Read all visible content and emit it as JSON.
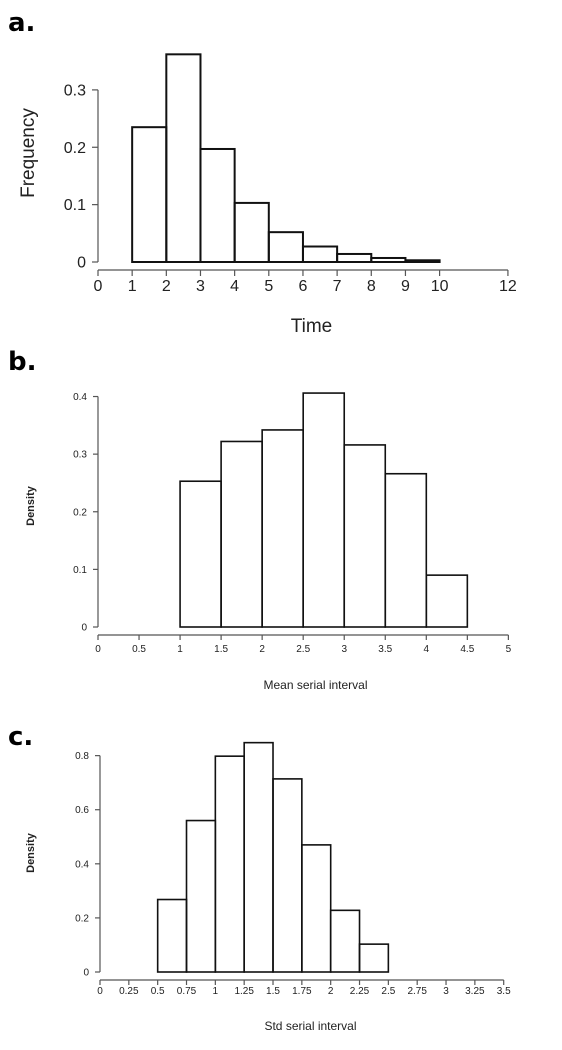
{
  "panels": [
    {
      "label": "a."
    },
    {
      "label": "b."
    },
    {
      "label": "c."
    }
  ],
  "chart_data": [
    {
      "type": "bar",
      "title": "",
      "xlabel": "Time",
      "ylabel": "Frequency",
      "xlim": [
        0,
        12.5
      ],
      "ylim": [
        0,
        0.38
      ],
      "xticks": [
        "0",
        "1",
        "2",
        "3",
        "4",
        "5",
        "6",
        "7",
        "8",
        "9",
        "10",
        "12"
      ],
      "yticks": [
        "0",
        "0.1",
        "0.2",
        "0.3"
      ],
      "bin_edges": [
        1,
        2,
        3,
        4,
        5,
        6,
        7,
        8,
        9,
        10
      ],
      "values": [
        0.235,
        0.362,
        0.197,
        0.103,
        0.052,
        0.027,
        0.014,
        0.007,
        0.003
      ],
      "grid": false
    },
    {
      "type": "bar",
      "title": "",
      "xlabel": "Mean serial interval",
      "ylabel": "Density",
      "xlim": [
        0,
        5.3
      ],
      "ylim": [
        0,
        0.42
      ],
      "xticks": [
        "0",
        "0.5",
        "1",
        "1.5",
        "2",
        "2.5",
        "3",
        "3.5",
        "4",
        "4.5",
        "5"
      ],
      "yticks": [
        "0",
        "0.1",
        "0.2",
        "0.3",
        "0.4"
      ],
      "bin_edges": [
        1,
        1.5,
        2,
        2.5,
        3,
        3.5,
        4,
        4.5
      ],
      "values": [
        0.253,
        0.322,
        0.342,
        0.406,
        0.316,
        0.266,
        0.09
      ],
      "grid": false
    },
    {
      "type": "bar",
      "title": "",
      "xlabel": "Std serial interval",
      "ylabel": "Density",
      "xlim": [
        0,
        3.65
      ],
      "ylim": [
        0,
        0.88
      ],
      "xticks": [
        "0",
        "0.25",
        "0.5",
        "0.75",
        "1",
        "1.25",
        "1.5",
        "1.75",
        "2",
        "2.25",
        "2.5",
        "2.75",
        "3",
        "3.25",
        "3.5"
      ],
      "yticks": [
        "0",
        "0.2",
        "0.4",
        "0.6",
        "0.8"
      ],
      "bin_edges": [
        0.5,
        0.75,
        1,
        1.25,
        1.5,
        1.75,
        2,
        2.25,
        2.5
      ],
      "values": [
        0.268,
        0.56,
        0.798,
        0.848,
        0.714,
        0.47,
        0.228,
        0.103
      ],
      "grid": false
    }
  ]
}
